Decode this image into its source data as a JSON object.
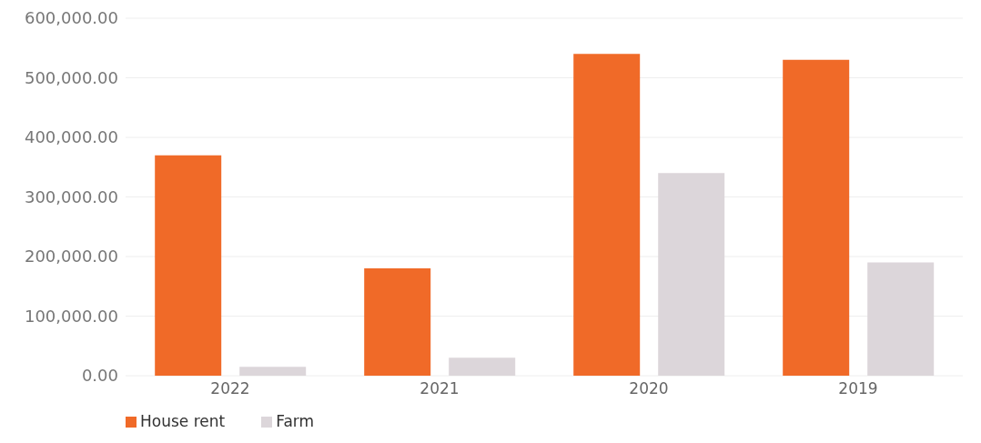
{
  "chart_data": {
    "type": "bar",
    "categories": [
      "2022",
      "2021",
      "2020",
      "2019"
    ],
    "series": [
      {
        "name": "House rent",
        "color": "#f06a28",
        "values": [
          370000,
          180000,
          540000,
          530000
        ]
      },
      {
        "name": "Farm",
        "color": "#dcd6da",
        "values": [
          15000,
          30000,
          340000,
          190000
        ]
      }
    ],
    "ylim": [
      0,
      600000
    ],
    "yticks": [
      {
        "value": 0,
        "label": "0.00"
      },
      {
        "value": 100000,
        "label": "100,000.00"
      },
      {
        "value": 200000,
        "label": "200,000.00"
      },
      {
        "value": 300000,
        "label": "300,000.00"
      },
      {
        "value": 400000,
        "label": "400,000.00"
      },
      {
        "value": 500000,
        "label": "500,000.00"
      },
      {
        "value": 600000,
        "label": "600,000.00"
      }
    ],
    "grid": "y",
    "legend": "bottom left"
  }
}
